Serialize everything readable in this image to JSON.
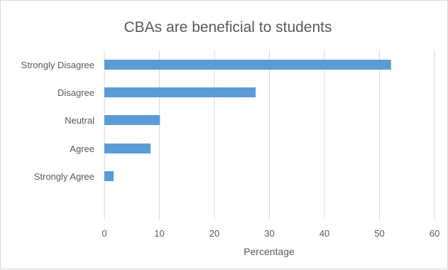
{
  "chart_data": {
    "type": "bar",
    "orientation": "horizontal",
    "title": "CBAs are beneficial to students",
    "xlabel": "Percentage",
    "ylabel": "",
    "categories": [
      "Strongly Disagree",
      "Disagree",
      "Neutral",
      "Agree",
      "Strongly Agree"
    ],
    "values": [
      52.1,
      27.5,
      10.1,
      8.4,
      1.7
    ],
    "xlim": [
      0,
      60
    ],
    "xticks": [
      "0",
      "10",
      "20",
      "30",
      "40",
      "50",
      "60"
    ],
    "grid": "vertical",
    "legend": "none",
    "bar_color": "#5b9bd5",
    "grid_color": "#d9d9d9"
  }
}
